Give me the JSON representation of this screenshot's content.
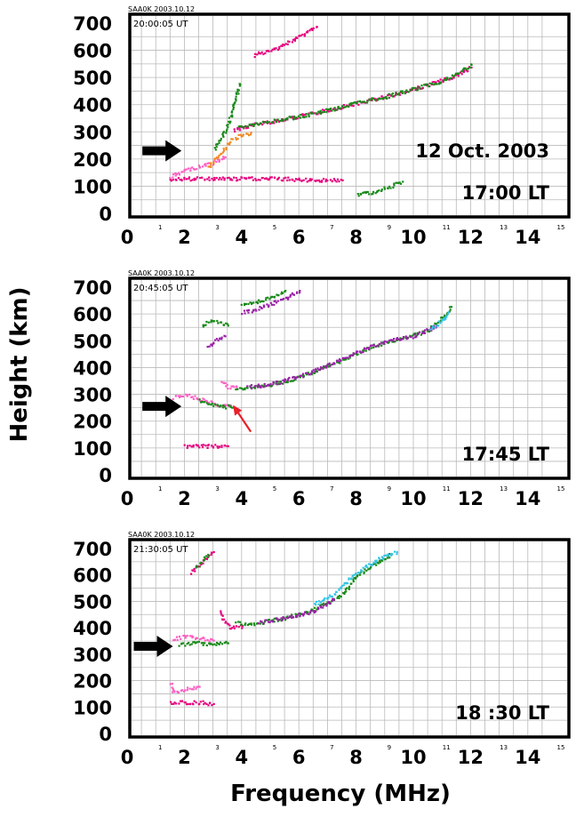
{
  "ylabel": "Height (km)",
  "xlabel": "Frequency (MHz)",
  "colors": {
    "magenta": "#e6007e",
    "pink": "#ff5ec4",
    "green": "#1a8a1a",
    "purple": "#9b1fa8",
    "cyan": "#35c4e6",
    "orange": "#f08a24",
    "arrow_black": "#000000",
    "arrow_red": "#e8202a"
  },
  "chart_data": [
    {
      "type": "scatter",
      "station_label": "SAA0K 2003.10.12",
      "ut_label": "20:00:05 UT",
      "annotation_lines": [
        "12 Oct. 2003",
        "17:00 LT"
      ],
      "xlim": [
        0,
        15
      ],
      "ylim": [
        0,
        700
      ],
      "x_major_ticks": [
        "0",
        "2",
        "4",
        "6",
        "8",
        "10",
        "12",
        "14"
      ],
      "x_minor_ticks": [
        "1",
        "3",
        "5",
        "7",
        "9",
        "11",
        "13",
        "15"
      ],
      "y_ticks": [
        "0",
        "100",
        "200",
        "300",
        "400",
        "500",
        "600",
        "700"
      ],
      "grid": true,
      "arrows": [
        {
          "color": "black",
          "point_x": 1.9,
          "point_y": 230
        }
      ],
      "traces": [
        {
          "color": "magenta",
          "points": [
            [
              3.7,
              310
            ],
            [
              4.5,
              330
            ],
            [
              5.5,
              350
            ],
            [
              6.5,
              370
            ],
            [
              7.5,
              395
            ],
            [
              8.5,
              420
            ],
            [
              9.5,
              445
            ],
            [
              10.5,
              475
            ],
            [
              11.2,
              500
            ],
            [
              11.7,
              520
            ],
            [
              12.0,
              540
            ]
          ]
        },
        {
          "color": "green",
          "points": [
            [
              3.9,
              320
            ],
            [
              5.0,
              340
            ],
            [
              6.0,
              360
            ],
            [
              7.0,
              383
            ],
            [
              8.0,
              408
            ],
            [
              9.0,
              432
            ],
            [
              10.0,
              460
            ],
            [
              11.0,
              490
            ],
            [
              11.5,
              515
            ],
            [
              12.0,
              550
            ]
          ]
        },
        {
          "color": "pink",
          "points": [
            [
              1.5,
              140
            ],
            [
              2.0,
              160
            ],
            [
              2.5,
              175
            ],
            [
              3.0,
              190
            ],
            [
              3.4,
              210
            ]
          ]
        },
        {
          "color": "orange",
          "points": [
            [
              2.8,
              170
            ],
            [
              3.2,
              220
            ],
            [
              3.6,
              270
            ],
            [
              3.9,
              290
            ],
            [
              4.3,
              300
            ]
          ]
        },
        {
          "color": "magenta",
          "points": [
            [
              1.5,
              130
            ],
            [
              2.5,
              130
            ],
            [
              3.5,
              130
            ],
            [
              4.5,
              130
            ],
            [
              5.5,
              130
            ],
            [
              6.5,
              125
            ],
            [
              7.5,
              125
            ]
          ]
        },
        {
          "color": "green",
          "points": [
            [
              3.0,
              240
            ],
            [
              3.3,
              280
            ],
            [
              3.6,
              360
            ],
            [
              3.8,
              440
            ],
            [
              3.9,
              480
            ]
          ]
        },
        {
          "color": "magenta",
          "points": [
            [
              4.4,
              585
            ],
            [
              5.0,
              600
            ],
            [
              5.8,
              640
            ],
            [
              6.6,
              690
            ]
          ]
        },
        {
          "color": "green",
          "points": [
            [
              8.0,
              70
            ],
            [
              8.5,
              80
            ],
            [
              9.0,
              95
            ],
            [
              9.6,
              120
            ]
          ]
        }
      ]
    },
    {
      "type": "scatter",
      "station_label": "SAA0K 2003.10.12",
      "ut_label": "20:45:05 UT",
      "annotation_lines": [
        "17:45 LT"
      ],
      "xlim": [
        0,
        15
      ],
      "ylim": [
        0,
        700
      ],
      "x_major_ticks": [
        "0",
        "2",
        "4",
        "6",
        "8",
        "10",
        "12",
        "14"
      ],
      "x_minor_ticks": [
        "1",
        "3",
        "5",
        "7",
        "9",
        "11",
        "13",
        "15"
      ],
      "y_ticks": [
        "0",
        "100",
        "200",
        "300",
        "400",
        "500",
        "600",
        "700"
      ],
      "grid": true,
      "arrows": [
        {
          "color": "black",
          "point_x": 1.9,
          "point_y": 255
        },
        {
          "color": "red",
          "point_x": 3.7,
          "point_y": 260
        }
      ],
      "traces": [
        {
          "color": "pink",
          "points": [
            [
              1.6,
              290
            ],
            [
              2.0,
              300
            ],
            [
              2.4,
              290
            ],
            [
              2.8,
              275
            ],
            [
              3.2,
              262
            ],
            [
              3.6,
              260
            ]
          ]
        },
        {
          "color": "green",
          "points": [
            [
              2.5,
              280
            ],
            [
              2.9,
              268
            ],
            [
              3.3,
              258
            ],
            [
              3.7,
              255
            ]
          ]
        },
        {
          "color": "green",
          "points": [
            [
              3.8,
              325
            ],
            [
              4.5,
              330
            ],
            [
              5.5,
              350
            ],
            [
              6.5,
              385
            ],
            [
              7.5,
              430
            ],
            [
              8.5,
              480
            ],
            [
              9.5,
              510
            ],
            [
              10.5,
              540
            ],
            [
              11.0,
              590
            ],
            [
              11.3,
              630
            ]
          ]
        },
        {
          "color": "purple",
          "points": [
            [
              4.2,
              330
            ],
            [
              5.0,
              340
            ],
            [
              6.0,
              370
            ],
            [
              7.0,
              410
            ],
            [
              8.0,
              460
            ],
            [
              9.0,
              500
            ],
            [
              10.0,
              520
            ],
            [
              10.8,
              560
            ]
          ]
        },
        {
          "color": "cyan",
          "points": [
            [
              10.6,
              545
            ],
            [
              11.0,
              580
            ],
            [
              11.2,
              610
            ]
          ]
        },
        {
          "color": "pink",
          "points": [
            [
              3.3,
              350
            ],
            [
              3.5,
              330
            ],
            [
              3.8,
              330
            ]
          ]
        },
        {
          "color": "purple",
          "points": [
            [
              2.8,
              480
            ],
            [
              3.0,
              500
            ],
            [
              3.4,
              520
            ]
          ]
        },
        {
          "color": "green",
          "points": [
            [
              2.6,
              560
            ],
            [
              3.0,
              580
            ],
            [
              3.5,
              560
            ]
          ]
        },
        {
          "color": "purple",
          "points": [
            [
              4.0,
              610
            ],
            [
              4.5,
              620
            ],
            [
              5.5,
              660
            ],
            [
              6.0,
              690
            ]
          ]
        },
        {
          "color": "green",
          "points": [
            [
              4.0,
              640
            ],
            [
              4.6,
              650
            ],
            [
              5.5,
              690
            ]
          ]
        },
        {
          "color": "magenta",
          "points": [
            [
              2.0,
              110
            ],
            [
              2.5,
              110
            ],
            [
              3.0,
              110
            ],
            [
              3.5,
              110
            ]
          ]
        }
      ]
    },
    {
      "type": "scatter",
      "station_label": "SAA0K 2003.10.12",
      "ut_label": "21:30:05 UT",
      "annotation_lines": [
        "18 :30 LT"
      ],
      "xlim": [
        0,
        15
      ],
      "ylim": [
        0,
        700
      ],
      "x_major_ticks": [
        "0",
        "2",
        "4",
        "6",
        "8",
        "10",
        "12",
        "14"
      ],
      "x_minor_ticks": [
        "1",
        "3",
        "5",
        "7",
        "9",
        "11",
        "13",
        "15"
      ],
      "y_ticks": [
        "0",
        "100",
        "200",
        "300",
        "400",
        "500",
        "600",
        "700"
      ],
      "grid": true,
      "arrows": [
        {
          "color": "black",
          "point_x": 1.6,
          "point_y": 330
        }
      ],
      "traces": [
        {
          "color": "pink",
          "points": [
            [
              1.6,
              360
            ],
            [
              2.0,
              370
            ],
            [
              2.5,
              365
            ],
            [
              3.0,
              355
            ]
          ]
        },
        {
          "color": "green",
          "points": [
            [
              1.8,
              340
            ],
            [
              2.4,
              345
            ],
            [
              3.0,
              340
            ],
            [
              3.5,
              345
            ]
          ]
        },
        {
          "color": "magenta",
          "points": [
            [
              3.2,
              460
            ],
            [
              3.4,
              420
            ],
            [
              3.6,
              400
            ],
            [
              4.0,
              410
            ]
          ]
        },
        {
          "color": "green",
          "points": [
            [
              3.8,
              420
            ],
            [
              4.5,
              420
            ],
            [
              5.5,
              440
            ],
            [
              6.5,
              470
            ],
            [
              7.5,
              530
            ],
            [
              8.0,
              600
            ],
            [
              8.7,
              650
            ],
            [
              9.2,
              680
            ]
          ]
        },
        {
          "color": "purple",
          "points": [
            [
              4.6,
              425
            ],
            [
              5.5,
              440
            ],
            [
              6.5,
              465
            ],
            [
              7.2,
              510
            ]
          ]
        },
        {
          "color": "cyan",
          "points": [
            [
              6.5,
              490
            ],
            [
              7.2,
              530
            ],
            [
              8.0,
              610
            ],
            [
              8.7,
              660
            ],
            [
              9.4,
              690
            ]
          ]
        },
        {
          "color": "magenta",
          "points": [
            [
              2.2,
              610
            ],
            [
              2.6,
              650
            ],
            [
              3.0,
              690
            ]
          ]
        },
        {
          "color": "green",
          "points": [
            [
              2.4,
              630
            ],
            [
              2.8,
              680
            ]
          ]
        },
        {
          "color": "magenta",
          "points": [
            [
              1.5,
              120
            ],
            [
              2.0,
              120
            ],
            [
              2.5,
              120
            ],
            [
              3.0,
              115
            ]
          ]
        },
        {
          "color": "pink",
          "points": [
            [
              1.5,
              190
            ],
            [
              1.6,
              160
            ],
            [
              2.5,
              180
            ]
          ]
        }
      ]
    }
  ]
}
